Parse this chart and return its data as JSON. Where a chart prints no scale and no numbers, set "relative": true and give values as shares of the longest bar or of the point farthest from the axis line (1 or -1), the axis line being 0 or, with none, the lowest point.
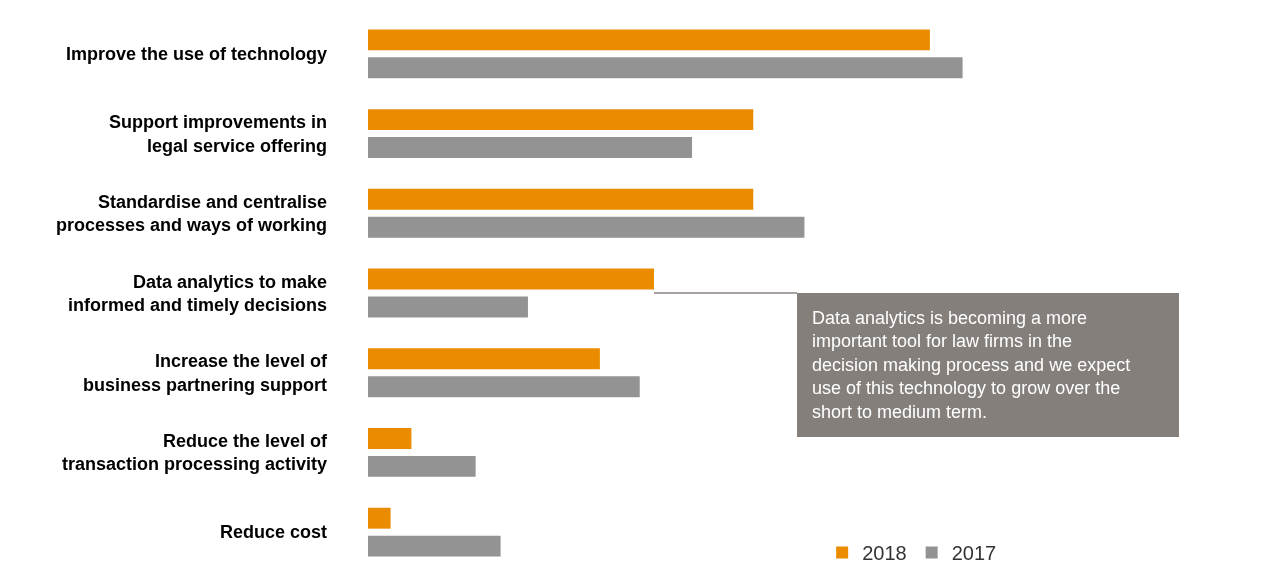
{
  "chart_data": {
    "type": "bar",
    "orientation": "horizontal",
    "relative": true,
    "legend": "bottom right",
    "grid": false,
    "categories": [
      "Improve the use of technology",
      "Support improvements in legal service offering",
      "Standardise and centralise processes and ways of working",
      "Data analytics to make informed and timely decisions",
      "Increase the level of business partnering support",
      "Reduce the level of transaction processing activity",
      "Reduce cost"
    ],
    "series": [
      {
        "name": "2018",
        "color": "#eb8c00",
        "values": [
          0.945,
          0.648,
          0.648,
          0.481,
          0.39,
          0.073,
          0.038
        ]
      },
      {
        "name": "2017",
        "color": "#939393",
        "values": [
          1,
          0.545,
          0.734,
          0.269,
          0.457,
          0.181,
          0.223
        ]
      }
    ],
    "annotations": [
      {
        "text": "Data analytics is becoming a more important tool for law firms in the decision making process and we expect use of this technology to grow over the short to medium term.",
        "x": 0.481,
        "y": "Data analytics to make informed and timely decisions"
      }
    ]
  }
}
